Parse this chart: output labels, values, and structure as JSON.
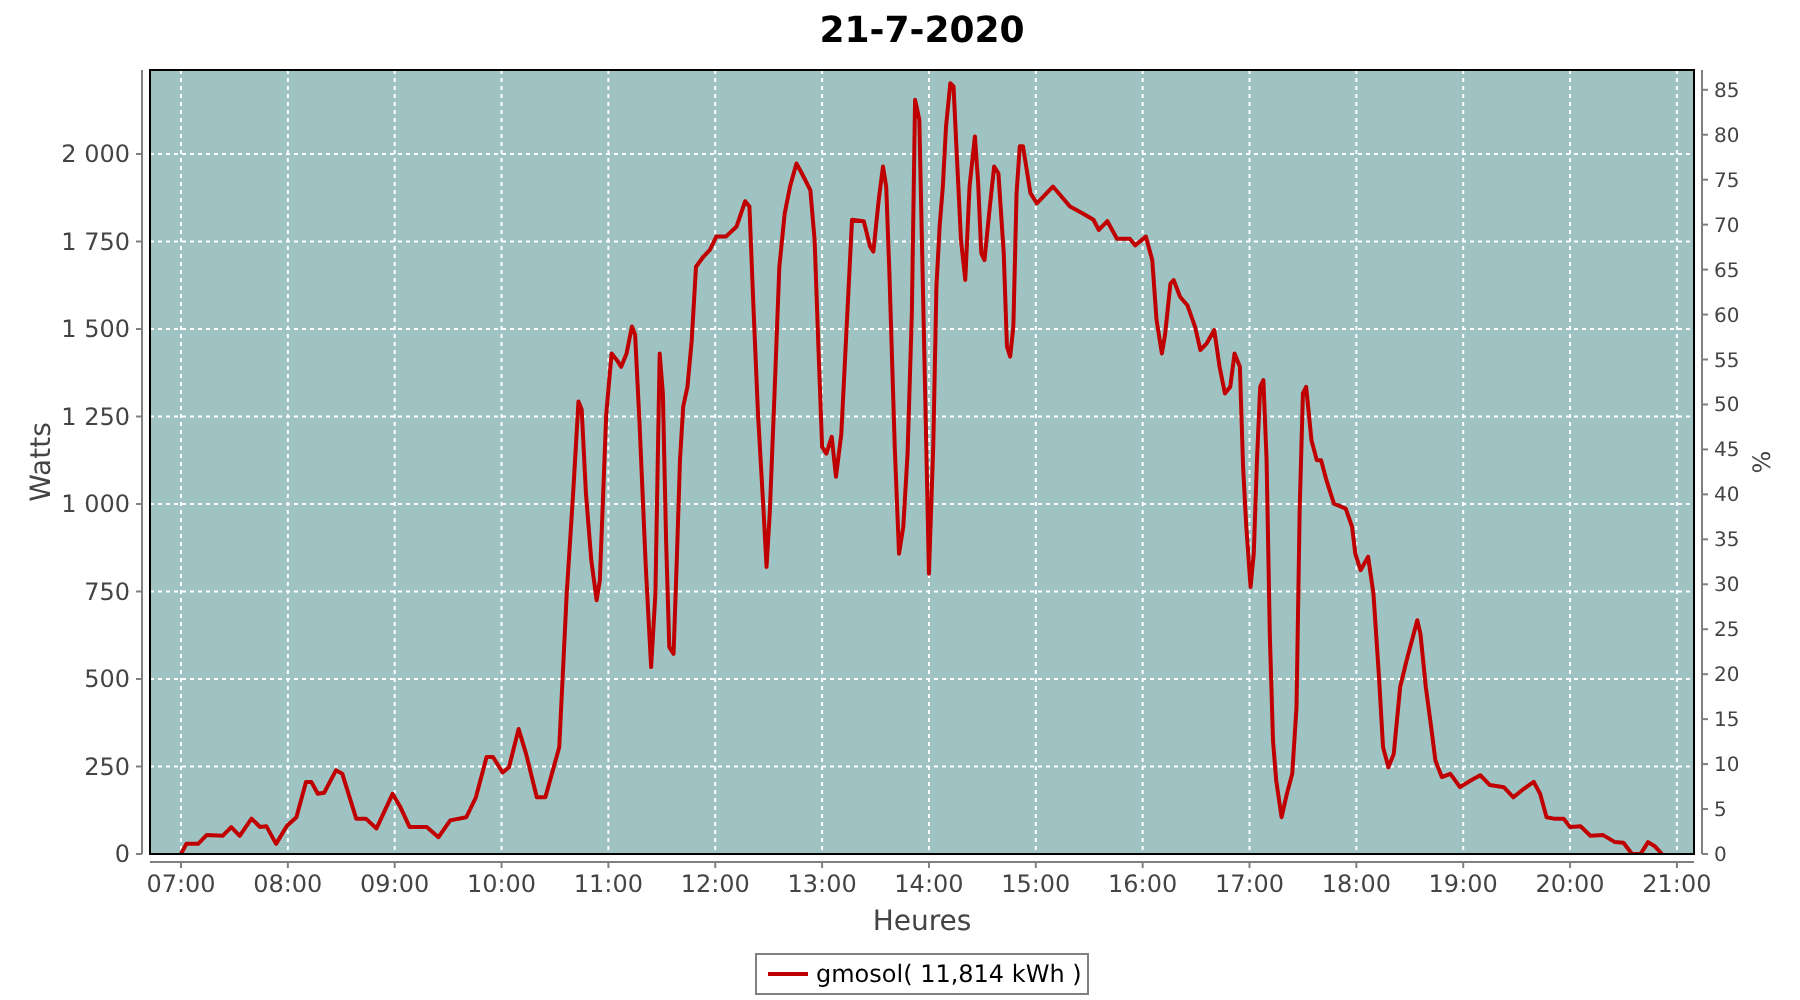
{
  "chart_data": {
    "type": "line",
    "title": "21-7-2020",
    "xlabel": "Heures",
    "ylabel": "Watts",
    "y2label": "%",
    "xlim": [
      6.71,
      21.16
    ],
    "xticks": [
      {
        "value": 7,
        "label": "07:00"
      },
      {
        "value": 8,
        "label": "08:00"
      },
      {
        "value": 9,
        "label": "09:00"
      },
      {
        "value": 10,
        "label": "10:00"
      },
      {
        "value": 11,
        "label": "11:00"
      },
      {
        "value": 12,
        "label": "12:00"
      },
      {
        "value": 13,
        "label": "13:00"
      },
      {
        "value": 14,
        "label": "14:00"
      },
      {
        "value": 15,
        "label": "15:00"
      },
      {
        "value": 16,
        "label": "16:00"
      },
      {
        "value": 17,
        "label": "17:00"
      },
      {
        "value": 18,
        "label": "18:00"
      },
      {
        "value": 19,
        "label": "19:00"
      },
      {
        "value": 20,
        "label": "20:00"
      },
      {
        "value": 21,
        "label": "21:00"
      }
    ],
    "ylim": [
      0,
      2240
    ],
    "yticks": [
      0,
      250,
      500,
      750,
      {
        "value": 1000,
        "label": "1 000"
      },
      {
        "value": 1250,
        "label": "1 250"
      },
      {
        "value": 1500,
        "label": "1 500"
      },
      {
        "value": 1750,
        "label": "1 750"
      },
      {
        "value": 2000,
        "label": "2 000"
      }
    ],
    "y2lim": [
      0,
      87.2
    ],
    "y2ticks": [
      0,
      5,
      10,
      15,
      20,
      25,
      30,
      35,
      40,
      45,
      50,
      55,
      60,
      65,
      70,
      75,
      80,
      85
    ],
    "grid": true,
    "legend": "bottom",
    "marker": "none",
    "line_style": "solid",
    "series": [
      {
        "name": "gmosol( 11,814 kWh )",
        "color": "#c00000",
        "x": [
          7.0,
          7.05,
          7.16,
          7.24,
          7.39,
          7.47,
          7.55,
          7.66,
          7.74,
          7.8,
          7.89,
          7.99,
          8.08,
          8.17,
          8.22,
          8.28,
          8.34,
          8.45,
          8.51,
          8.64,
          8.73,
          8.83,
          8.98,
          9.05,
          9.14,
          9.3,
          9.41,
          9.52,
          9.67,
          9.76,
          9.86,
          9.92,
          10.01,
          10.07,
          10.16,
          10.23,
          10.33,
          10.41,
          10.48,
          10.54,
          10.61,
          10.67,
          10.72,
          10.75,
          10.79,
          10.84,
          10.89,
          10.92,
          10.98,
          11.03,
          11.08,
          11.12,
          11.17,
          11.22,
          11.25,
          11.29,
          11.35,
          11.4,
          11.44,
          11.48,
          11.51,
          11.54,
          11.57,
          11.61,
          11.64,
          11.67,
          11.7,
          11.74,
          11.78,
          11.82,
          11.89,
          11.95,
          12.01,
          12.1,
          12.2,
          12.28,
          12.32,
          12.36,
          12.4,
          12.45,
          12.48,
          12.51,
          12.55,
          12.6,
          12.65,
          12.7,
          12.76,
          12.81,
          12.89,
          12.93,
          12.97,
          13.0,
          13.04,
          13.09,
          13.13,
          13.18,
          13.23,
          13.28,
          13.39,
          13.45,
          13.48,
          13.53,
          13.57,
          13.6,
          13.63,
          13.68,
          13.72,
          13.76,
          13.8,
          13.84,
          13.87,
          13.91,
          13.97,
          14.0,
          14.04,
          14.07,
          14.1,
          14.13,
          14.16,
          14.2,
          14.23,
          14.26,
          14.3,
          14.34,
          14.38,
          14.43,
          14.46,
          14.49,
          14.52,
          14.57,
          14.61,
          14.65,
          14.7,
          14.73,
          14.76,
          14.79,
          14.82,
          14.85,
          14.88,
          14.95,
          15.01,
          15.16,
          15.32,
          15.44,
          15.54,
          15.59,
          15.67,
          15.76,
          15.88,
          15.93,
          16.03,
          16.09,
          16.13,
          16.18,
          16.21,
          16.26,
          16.29,
          16.35,
          16.42,
          16.49,
          16.54,
          16.6,
          16.67,
          16.72,
          16.77,
          16.82,
          16.86,
          16.91,
          16.94,
          16.97,
          17.01,
          17.04,
          17.07,
          17.1,
          17.13,
          17.16,
          17.19,
          17.22,
          17.25,
          17.3,
          17.35,
          17.4,
          17.44,
          17.47,
          17.5,
          17.53,
          17.58,
          17.63,
          17.67,
          17.72,
          17.79,
          17.9,
          17.96,
          17.99,
          18.04,
          18.11,
          18.16,
          18.21,
          18.25,
          18.3,
          18.35,
          18.41,
          18.47,
          18.52,
          18.57,
          18.6,
          18.65,
          18.7,
          18.74,
          18.8,
          18.88,
          18.97,
          19.07,
          19.16,
          19.25,
          19.38,
          19.47,
          19.57,
          19.66,
          19.72,
          19.78,
          19.85,
          19.94,
          20.0,
          20.1,
          20.19,
          20.31,
          20.42,
          20.5,
          20.58,
          20.66,
          20.73,
          20.79,
          20.86
        ],
        "values": [
          0,
          29,
          29,
          54,
          52,
          77,
          52,
          101,
          77,
          79,
          29,
          80,
          105,
          206,
          206,
          172,
          175,
          239,
          229,
          101,
          101,
          73,
          172,
          136,
          77,
          77,
          48,
          96,
          105,
          162,
          277,
          277,
          233,
          248,
          357,
          286,
          162,
          162,
          239,
          305,
          744,
          1030,
          1293,
          1270,
          1030,
          839,
          725,
          782,
          1258,
          1430,
          1411,
          1392,
          1430,
          1507,
          1484,
          1240,
          820,
          534,
          744,
          1430,
          1316,
          896,
          591,
          572,
          839,
          1125,
          1278,
          1335,
          1468,
          1678,
          1707,
          1726,
          1764,
          1764,
          1793,
          1865,
          1850,
          1545,
          1258,
          992,
          820,
          973,
          1278,
          1678,
          1830,
          1907,
          1973,
          1945,
          1897,
          1754,
          1411,
          1163,
          1144,
          1192,
          1078,
          1201,
          1507,
          1812,
          1808,
          1735,
          1721,
          1869,
          1964,
          1907,
          1659,
          1163,
          858,
          935,
          1144,
          1545,
          2155,
          2098,
          1240,
          801,
          1163,
          1621,
          1793,
          1907,
          2079,
          2202,
          2193,
          2002,
          1754,
          1640,
          1907,
          2050,
          1920,
          1716,
          1697,
          1850,
          1964,
          1945,
          1716,
          1450,
          1421,
          1507,
          1888,
          2022,
          2022,
          1888,
          1859,
          1907,
          1850,
          1830,
          1812,
          1783,
          1808,
          1758,
          1758,
          1739,
          1764,
          1697,
          1526,
          1430,
          1484,
          1630,
          1640,
          1592,
          1567,
          1507,
          1440,
          1459,
          1497,
          1392,
          1316,
          1335,
          1430,
          1392,
          1106,
          935,
          763,
          859,
          1125,
          1335,
          1354,
          1125,
          629,
          324,
          210,
          105,
          172,
          229,
          420,
          992,
          1316,
          1335,
          1182,
          1125,
          1125,
          1068,
          1001,
          987,
          935,
          858,
          811,
          849,
          744,
          515,
          305,
          248,
          286,
          477,
          553,
          610,
          668,
          629,
          477,
          363,
          267,
          220,
          229,
          191,
          210,
          225,
          197,
          191,
          162,
          187,
          206,
          172,
          105,
          101,
          101,
          77,
          79,
          52,
          54,
          34,
          32,
          0,
          0,
          34,
          23,
          0
        ]
      }
    ]
  }
}
